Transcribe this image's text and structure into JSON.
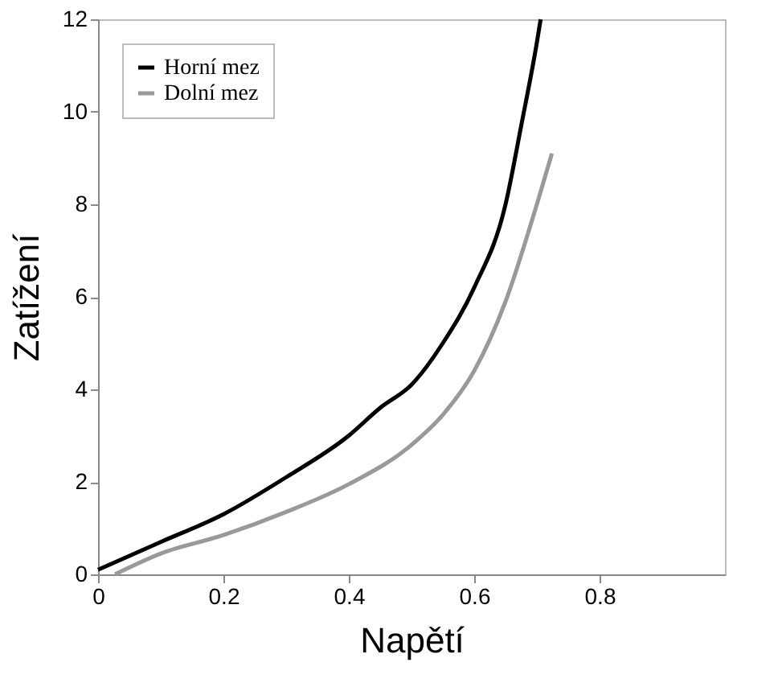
{
  "chart_data": {
    "type": "line",
    "xlabel": "Napětí",
    "ylabel": "Zatížení",
    "xlim": [
      0,
      1
    ],
    "ylim": [
      0,
      12
    ],
    "xticks": [
      0,
      0.2,
      0.4,
      0.6,
      0.8
    ],
    "yticks": [
      0,
      2,
      4,
      6,
      8,
      10,
      12
    ],
    "grid": false,
    "legend": "top left",
    "marker": "none",
    "line_style": "solid",
    "series": [
      {
        "name": "Horní mez",
        "color": "#000000",
        "x": [
          0,
          0.1,
          0.2,
          0.3,
          0.4,
          0.45,
          0.5,
          0.55,
          0.6,
          0.65,
          0.675,
          0.7,
          0.706
        ],
        "values": [
          0.1,
          0.7,
          1.3,
          2.1,
          3.0,
          3.6,
          4.1,
          5.0,
          6.2,
          8.0,
          9.7,
          11.5,
          12
        ]
      },
      {
        "name": "Dolní mez",
        "color": "#999999",
        "x": [
          0.027,
          0.1,
          0.2,
          0.3,
          0.4,
          0.5,
          0.55,
          0.6,
          0.65,
          0.7,
          0.724
        ],
        "values": [
          0,
          0.45,
          0.85,
          1.35,
          1.95,
          2.8,
          3.45,
          4.4,
          5.9,
          8.0,
          9.1
        ]
      }
    ]
  }
}
